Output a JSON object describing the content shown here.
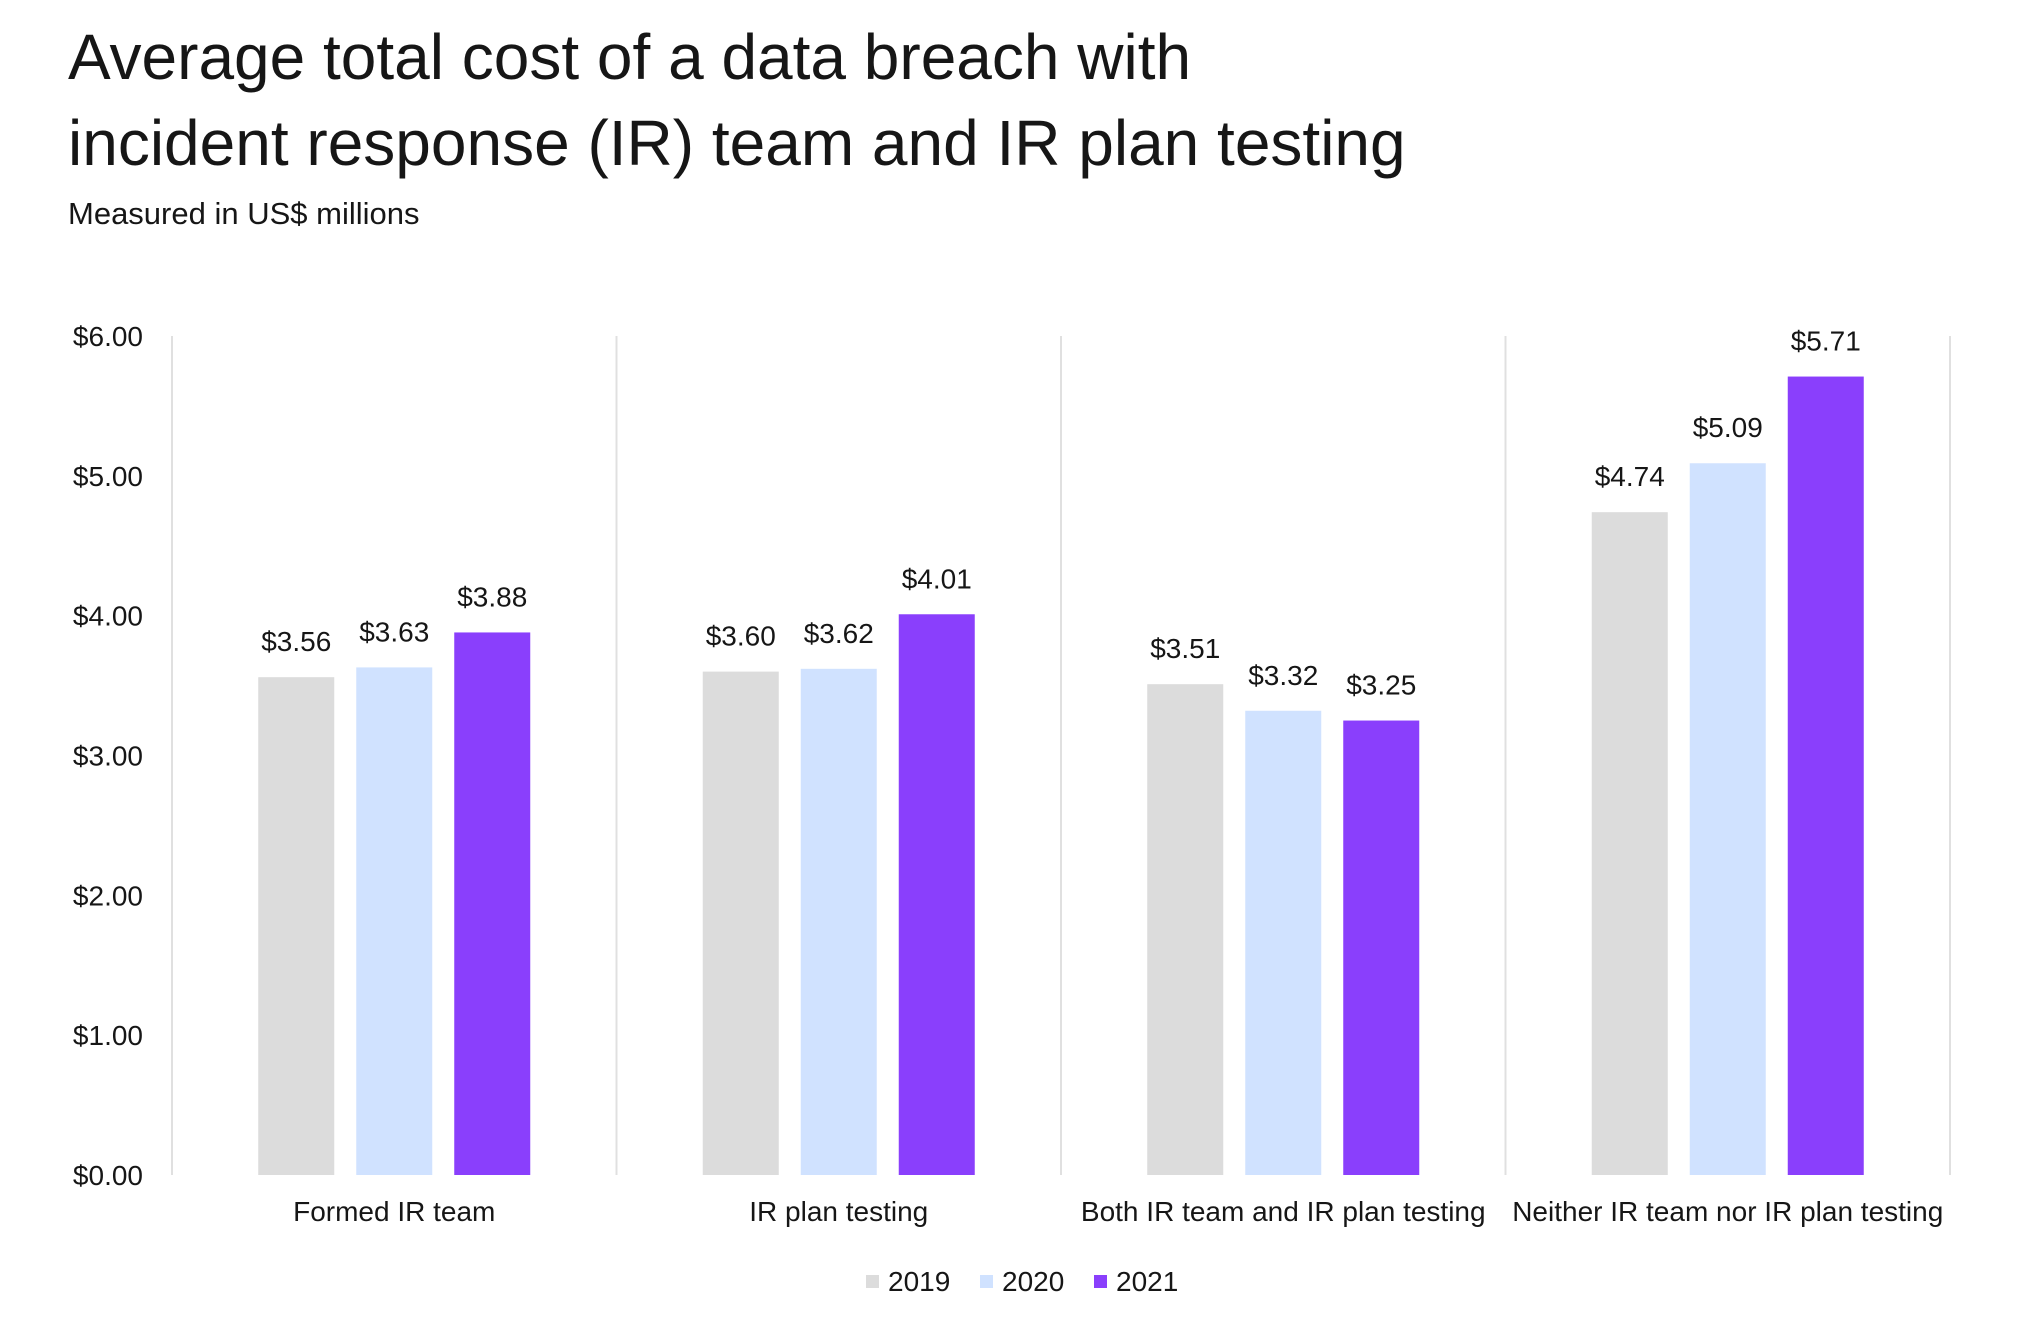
{
  "header": {
    "title_line1": "Average total cost of a data breach with",
    "title_line2": "incident response (IR) team and IR plan testing",
    "subtitle": "Measured in US$ millions"
  },
  "chart_data": {
    "type": "bar",
    "title": "Average total cost of a data breach with incident response (IR) team and IR plan testing",
    "subtitle": "Measured in US$ millions",
    "categories": [
      "Formed IR team",
      "IR plan testing",
      "Both IR team and IR plan testing",
      "Neither IR team nor IR plan testing"
    ],
    "series": [
      {
        "name": "2019",
        "color": "#dcdcdc",
        "values": [
          3.56,
          3.6,
          3.51,
          4.74
        ],
        "labels": [
          "$3.56",
          "$3.60",
          "$3.51",
          "$4.74"
        ]
      },
      {
        "name": "2020",
        "color": "#d0e2ff",
        "values": [
          3.63,
          3.62,
          3.32,
          5.09
        ],
        "labels": [
          "$3.63",
          "$3.62",
          "$3.32",
          "$5.09"
        ]
      },
      {
        "name": "2021",
        "color": "#8a3ffc",
        "values": [
          3.88,
          4.01,
          3.25,
          5.71
        ],
        "labels": [
          "$3.88",
          "$4.01",
          "$3.25",
          "$5.71"
        ]
      }
    ],
    "y_ticks": [
      0,
      1,
      2,
      3,
      4,
      5,
      6
    ],
    "y_tick_labels": [
      "$0.00",
      "$1.00",
      "$2.00",
      "$3.00",
      "$4.00",
      "$5.00",
      "$6.00"
    ],
    "ylim": [
      0,
      6
    ],
    "xlabel": "",
    "ylabel": "",
    "grid": false,
    "category_separators": true,
    "legend_position": "bottom-center"
  }
}
